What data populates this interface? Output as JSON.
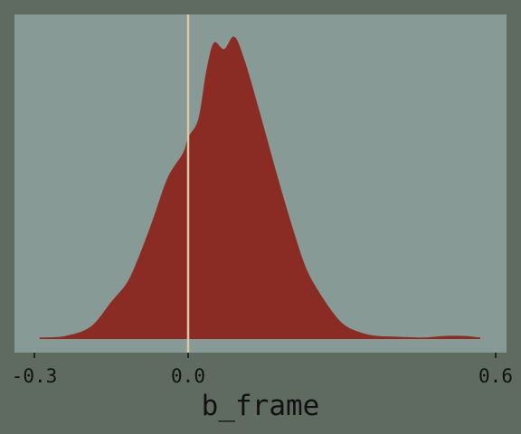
{
  "chart_data": {
    "type": "area",
    "title": "",
    "xlabel": "b_frame",
    "ylabel": "",
    "xlim": [
      -0.3,
      0.6
    ],
    "ylim": [
      0,
      1
    ],
    "xticks": [
      {
        "value": -0.3,
        "label": "-0.3"
      },
      {
        "value": 0.0,
        "label": "0.0"
      },
      {
        "value": 0.6,
        "label": "0.6"
      }
    ],
    "grid": false,
    "reference_line": {
      "x": 0.0,
      "color": "#d8c8a8"
    },
    "series": [
      {
        "fill": "#8b2c24",
        "x": [
          -0.29,
          -0.24,
          -0.19,
          -0.15,
          -0.12,
          -0.1,
          -0.07,
          -0.04,
          -0.01,
          0.0,
          0.02,
          0.035,
          0.05,
          0.07,
          0.09,
          0.11,
          0.14,
          0.17,
          0.2,
          0.23,
          0.26,
          0.29,
          0.31,
          0.33,
          0.35,
          0.37,
          0.4,
          0.43,
          0.46,
          0.5,
          0.54,
          0.57
        ],
        "y": [
          0.005,
          0.01,
          0.04,
          0.12,
          0.18,
          0.25,
          0.38,
          0.52,
          0.6,
          0.65,
          0.71,
          0.86,
          0.955,
          0.935,
          0.975,
          0.9,
          0.73,
          0.55,
          0.38,
          0.23,
          0.14,
          0.07,
          0.04,
          0.025,
          0.015,
          0.01,
          0.008,
          0.006,
          0.005,
          0.01,
          0.01,
          0.005
        ]
      }
    ]
  }
}
